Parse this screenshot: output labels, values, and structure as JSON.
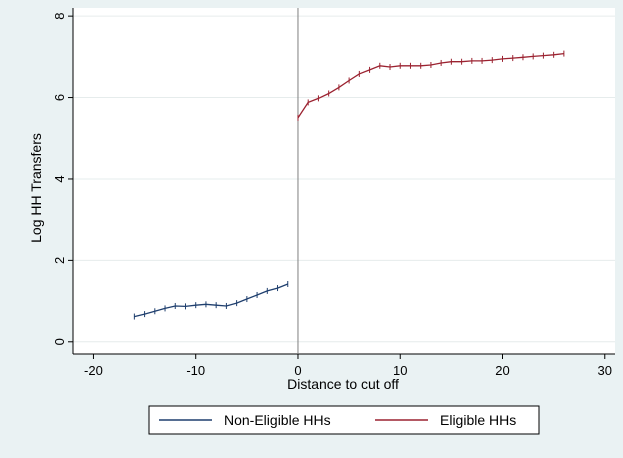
{
  "chart_data": {
    "type": "line",
    "title": "",
    "xlabel": "Distance to cut off",
    "ylabel": "Log HH Transfers",
    "xlim": [
      -22,
      31
    ],
    "ylim": [
      -0.3,
      8.2
    ],
    "xticks": [
      -20,
      -10,
      0,
      10,
      20,
      30
    ],
    "yticks": [
      0,
      2,
      4,
      6,
      8
    ],
    "xtick_labels": [
      "-20",
      "-10",
      "0",
      "10",
      "20",
      "30"
    ],
    "ytick_labels": [
      "0",
      "2",
      "4",
      "6",
      "8"
    ],
    "grid": true,
    "cutoff_x": 0,
    "legend_position": "bottom",
    "series": [
      {
        "name": "Non-Eligible HHs",
        "color": "#1f3f6e",
        "x": [
          -16,
          -15,
          -14,
          -13,
          -12,
          -11,
          -10,
          -9,
          -8,
          -7,
          -6,
          -5,
          -4,
          -3,
          -2,
          -1
        ],
        "y": [
          0.62,
          0.68,
          0.75,
          0.82,
          0.88,
          0.87,
          0.9,
          0.92,
          0.9,
          0.88,
          0.95,
          1.05,
          1.15,
          1.25,
          1.32,
          1.42
        ]
      },
      {
        "name": "Eligible HHs",
        "color": "#9b2230",
        "x": [
          0,
          1,
          2,
          3,
          4,
          5,
          6,
          7,
          8,
          9,
          10,
          11,
          12,
          13,
          14,
          15,
          16,
          17,
          18,
          19,
          20,
          21,
          22,
          23,
          24,
          25,
          26
        ],
        "y": [
          5.5,
          5.88,
          5.98,
          6.1,
          6.25,
          6.42,
          6.58,
          6.68,
          6.78,
          6.75,
          6.78,
          6.78,
          6.78,
          6.8,
          6.85,
          6.88,
          6.88,
          6.9,
          6.9,
          6.92,
          6.95,
          6.97,
          6.99,
          7.01,
          7.03,
          7.05,
          7.08
        ]
      }
    ]
  }
}
